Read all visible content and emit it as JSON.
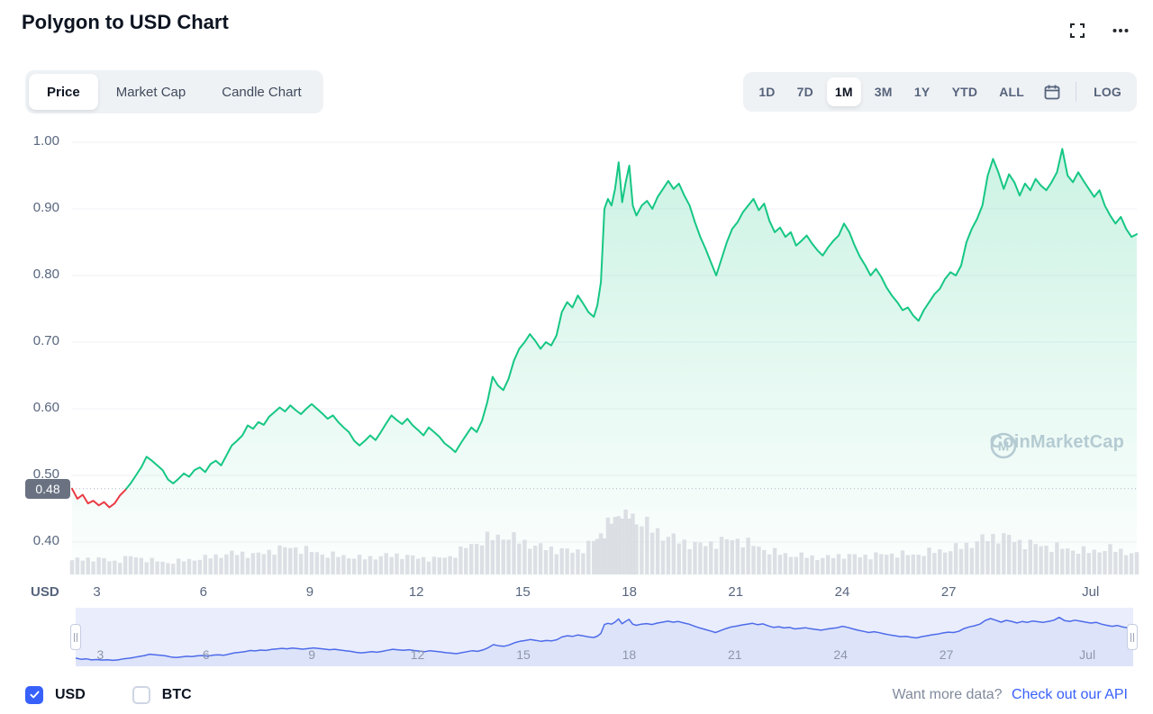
{
  "header": {
    "title": "Polygon to USD Chart"
  },
  "toolbar": {
    "tabs": [
      {
        "label": "Price",
        "active": true
      },
      {
        "label": "Market Cap",
        "active": false
      },
      {
        "label": "Candle Chart",
        "active": false
      }
    ],
    "ranges": [
      {
        "label": "1D",
        "active": false
      },
      {
        "label": "7D",
        "active": false
      },
      {
        "label": "1M",
        "active": true
      },
      {
        "label": "3M",
        "active": false
      },
      {
        "label": "1Y",
        "active": false
      },
      {
        "label": "YTD",
        "active": false
      },
      {
        "label": "ALL",
        "active": false
      }
    ],
    "log_label": "LOG"
  },
  "watermark": {
    "text": "CoinMarketCap"
  },
  "chart_data": {
    "type": "area",
    "title": "Polygon to USD Chart",
    "range_selected": "1M",
    "currency": "USD",
    "yticks": [
      "1.00",
      "0.90",
      "0.80",
      "0.70",
      "0.60",
      "0.50",
      "0.40"
    ],
    "ylim": [
      0.4,
      1.0
    ],
    "xticks": [
      {
        "label": "3",
        "day": 3
      },
      {
        "label": "6",
        "day": 6
      },
      {
        "label": "9",
        "day": 9
      },
      {
        "label": "12",
        "day": 12
      },
      {
        "label": "15",
        "day": 15
      },
      {
        "label": "18",
        "day": 18
      },
      {
        "label": "21",
        "day": 21
      },
      {
        "label": "24",
        "day": 24
      },
      {
        "label": "27",
        "day": 27
      },
      {
        "label": "Jul",
        "day": 31
      }
    ],
    "reference_price": 0.48,
    "reference_label": "0.48",
    "line_color_up": "#16c784",
    "line_color_down": "#ea3943",
    "volume_color": "#d8dbe1",
    "navigator_line_color": "#4e6bea",
    "navigator_bg_color": "#e9edfc",
    "navigator_fill_color": "#dde4f9",
    "points": [
      [
        2.3,
        0.48
      ],
      [
        2.45,
        0.465
      ],
      [
        2.6,
        0.471
      ],
      [
        2.75,
        0.458
      ],
      [
        2.9,
        0.462
      ],
      [
        3.05,
        0.455
      ],
      [
        3.2,
        0.46
      ],
      [
        3.35,
        0.452
      ],
      [
        3.5,
        0.458
      ],
      [
        3.65,
        0.47
      ],
      [
        3.8,
        0.478
      ],
      [
        3.95,
        0.488
      ],
      [
        4.1,
        0.5
      ],
      [
        4.25,
        0.512
      ],
      [
        4.4,
        0.528
      ],
      [
        4.55,
        0.522
      ],
      [
        4.7,
        0.515
      ],
      [
        4.85,
        0.508
      ],
      [
        5.0,
        0.494
      ],
      [
        5.15,
        0.488
      ],
      [
        5.3,
        0.495
      ],
      [
        5.45,
        0.503
      ],
      [
        5.6,
        0.498
      ],
      [
        5.75,
        0.508
      ],
      [
        5.9,
        0.512
      ],
      [
        6.05,
        0.505
      ],
      [
        6.2,
        0.517
      ],
      [
        6.35,
        0.522
      ],
      [
        6.5,
        0.515
      ],
      [
        6.65,
        0.53
      ],
      [
        6.8,
        0.545
      ],
      [
        6.95,
        0.552
      ],
      [
        7.1,
        0.56
      ],
      [
        7.25,
        0.575
      ],
      [
        7.4,
        0.57
      ],
      [
        7.55,
        0.58
      ],
      [
        7.7,
        0.576
      ],
      [
        7.85,
        0.588
      ],
      [
        8.0,
        0.595
      ],
      [
        8.15,
        0.602
      ],
      [
        8.3,
        0.596
      ],
      [
        8.45,
        0.605
      ],
      [
        8.6,
        0.598
      ],
      [
        8.75,
        0.592
      ],
      [
        8.9,
        0.6
      ],
      [
        9.05,
        0.607
      ],
      [
        9.2,
        0.6
      ],
      [
        9.35,
        0.593
      ],
      [
        9.5,
        0.585
      ],
      [
        9.65,
        0.59
      ],
      [
        9.8,
        0.58
      ],
      [
        9.95,
        0.572
      ],
      [
        10.1,
        0.565
      ],
      [
        10.25,
        0.552
      ],
      [
        10.4,
        0.545
      ],
      [
        10.55,
        0.552
      ],
      [
        10.7,
        0.56
      ],
      [
        10.85,
        0.553
      ],
      [
        11.0,
        0.565
      ],
      [
        11.15,
        0.578
      ],
      [
        11.3,
        0.59
      ],
      [
        11.45,
        0.583
      ],
      [
        11.6,
        0.577
      ],
      [
        11.75,
        0.585
      ],
      [
        11.9,
        0.575
      ],
      [
        12.05,
        0.568
      ],
      [
        12.2,
        0.56
      ],
      [
        12.35,
        0.572
      ],
      [
        12.5,
        0.565
      ],
      [
        12.65,
        0.558
      ],
      [
        12.8,
        0.548
      ],
      [
        12.95,
        0.542
      ],
      [
        13.1,
        0.535
      ],
      [
        13.25,
        0.548
      ],
      [
        13.4,
        0.56
      ],
      [
        13.55,
        0.572
      ],
      [
        13.7,
        0.565
      ],
      [
        13.85,
        0.582
      ],
      [
        14.0,
        0.61
      ],
      [
        14.15,
        0.648
      ],
      [
        14.3,
        0.635
      ],
      [
        14.45,
        0.628
      ],
      [
        14.6,
        0.645
      ],
      [
        14.75,
        0.672
      ],
      [
        14.9,
        0.69
      ],
      [
        15.05,
        0.7
      ],
      [
        15.2,
        0.712
      ],
      [
        15.35,
        0.702
      ],
      [
        15.5,
        0.69
      ],
      [
        15.65,
        0.7
      ],
      [
        15.8,
        0.695
      ],
      [
        15.95,
        0.71
      ],
      [
        16.1,
        0.745
      ],
      [
        16.25,
        0.76
      ],
      [
        16.4,
        0.752
      ],
      [
        16.55,
        0.77
      ],
      [
        16.7,
        0.758
      ],
      [
        16.85,
        0.745
      ],
      [
        17.0,
        0.738
      ],
      [
        17.1,
        0.755
      ],
      [
        17.2,
        0.79
      ],
      [
        17.3,
        0.9
      ],
      [
        17.4,
        0.915
      ],
      [
        17.5,
        0.905
      ],
      [
        17.6,
        0.93
      ],
      [
        17.7,
        0.97
      ],
      [
        17.8,
        0.91
      ],
      [
        17.9,
        0.94
      ],
      [
        18.0,
        0.965
      ],
      [
        18.1,
        0.905
      ],
      [
        18.2,
        0.89
      ],
      [
        18.35,
        0.905
      ],
      [
        18.5,
        0.912
      ],
      [
        18.65,
        0.9
      ],
      [
        18.8,
        0.918
      ],
      [
        18.95,
        0.93
      ],
      [
        19.1,
        0.942
      ],
      [
        19.25,
        0.93
      ],
      [
        19.4,
        0.938
      ],
      [
        19.55,
        0.92
      ],
      [
        19.7,
        0.905
      ],
      [
        19.85,
        0.88
      ],
      [
        20.0,
        0.858
      ],
      [
        20.15,
        0.84
      ],
      [
        20.3,
        0.82
      ],
      [
        20.45,
        0.8
      ],
      [
        20.6,
        0.825
      ],
      [
        20.75,
        0.85
      ],
      [
        20.9,
        0.87
      ],
      [
        21.05,
        0.88
      ],
      [
        21.2,
        0.895
      ],
      [
        21.35,
        0.905
      ],
      [
        21.5,
        0.915
      ],
      [
        21.65,
        0.898
      ],
      [
        21.8,
        0.908
      ],
      [
        21.95,
        0.882
      ],
      [
        22.1,
        0.865
      ],
      [
        22.25,
        0.872
      ],
      [
        22.4,
        0.858
      ],
      [
        22.55,
        0.865
      ],
      [
        22.7,
        0.845
      ],
      [
        22.85,
        0.852
      ],
      [
        23.0,
        0.86
      ],
      [
        23.15,
        0.848
      ],
      [
        23.3,
        0.838
      ],
      [
        23.45,
        0.83
      ],
      [
        23.6,
        0.842
      ],
      [
        23.75,
        0.852
      ],
      [
        23.9,
        0.86
      ],
      [
        24.05,
        0.878
      ],
      [
        24.2,
        0.865
      ],
      [
        24.35,
        0.845
      ],
      [
        24.5,
        0.828
      ],
      [
        24.65,
        0.815
      ],
      [
        24.8,
        0.8
      ],
      [
        24.95,
        0.81
      ],
      [
        25.1,
        0.798
      ],
      [
        25.25,
        0.782
      ],
      [
        25.4,
        0.77
      ],
      [
        25.55,
        0.76
      ],
      [
        25.7,
        0.748
      ],
      [
        25.85,
        0.752
      ],
      [
        26.0,
        0.74
      ],
      [
        26.15,
        0.732
      ],
      [
        26.3,
        0.748
      ],
      [
        26.45,
        0.76
      ],
      [
        26.6,
        0.772
      ],
      [
        26.75,
        0.78
      ],
      [
        26.9,
        0.795
      ],
      [
        27.05,
        0.805
      ],
      [
        27.2,
        0.8
      ],
      [
        27.35,
        0.815
      ],
      [
        27.5,
        0.85
      ],
      [
        27.65,
        0.87
      ],
      [
        27.8,
        0.885
      ],
      [
        27.95,
        0.905
      ],
      [
        28.1,
        0.95
      ],
      [
        28.25,
        0.975
      ],
      [
        28.4,
        0.955
      ],
      [
        28.55,
        0.93
      ],
      [
        28.7,
        0.952
      ],
      [
        28.85,
        0.94
      ],
      [
        29.0,
        0.92
      ],
      [
        29.15,
        0.938
      ],
      [
        29.3,
        0.928
      ],
      [
        29.45,
        0.945
      ],
      [
        29.6,
        0.935
      ],
      [
        29.75,
        0.928
      ],
      [
        29.9,
        0.94
      ],
      [
        30.05,
        0.955
      ],
      [
        30.2,
        0.99
      ],
      [
        30.35,
        0.95
      ],
      [
        30.5,
        0.94
      ],
      [
        30.65,
        0.955
      ],
      [
        30.8,
        0.942
      ],
      [
        30.95,
        0.93
      ],
      [
        31.1,
        0.918
      ],
      [
        31.25,
        0.928
      ],
      [
        31.4,
        0.905
      ],
      [
        31.55,
        0.89
      ],
      [
        31.7,
        0.878
      ],
      [
        31.85,
        0.888
      ],
      [
        32.0,
        0.87
      ],
      [
        32.15,
        0.858
      ],
      [
        32.3,
        0.862
      ]
    ],
    "volume_points": [
      [
        2.3,
        0.22
      ],
      [
        3,
        0.25
      ],
      [
        3.5,
        0.2
      ],
      [
        4,
        0.28
      ],
      [
        4.5,
        0.22
      ],
      [
        5,
        0.18
      ],
      [
        5.5,
        0.22
      ],
      [
        6,
        0.25
      ],
      [
        6.5,
        0.3
      ],
      [
        7,
        0.33
      ],
      [
        7.5,
        0.3
      ],
      [
        8,
        0.38
      ],
      [
        8.5,
        0.42
      ],
      [
        9,
        0.36
      ],
      [
        9.5,
        0.3
      ],
      [
        10,
        0.28
      ],
      [
        10.5,
        0.25
      ],
      [
        11,
        0.28
      ],
      [
        11.5,
        0.3
      ],
      [
        12,
        0.26
      ],
      [
        12.5,
        0.24
      ],
      [
        13,
        0.28
      ],
      [
        13.5,
        0.45
      ],
      [
        14,
        0.55
      ],
      [
        14.5,
        0.6
      ],
      [
        15,
        0.5
      ],
      [
        15.5,
        0.42
      ],
      [
        16,
        0.38
      ],
      [
        16.5,
        0.35
      ],
      [
        17,
        0.5
      ],
      [
        17.5,
        0.8
      ],
      [
        17.8,
        1.0
      ],
      [
        18,
        0.92
      ],
      [
        18.5,
        0.75
      ],
      [
        19,
        0.6
      ],
      [
        19.5,
        0.5
      ],
      [
        20,
        0.45
      ],
      [
        20.5,
        0.5
      ],
      [
        21,
        0.55
      ],
      [
        21.5,
        0.45
      ],
      [
        22,
        0.35
      ],
      [
        22.5,
        0.3
      ],
      [
        23,
        0.28
      ],
      [
        23.5,
        0.25
      ],
      [
        24,
        0.3
      ],
      [
        24.5,
        0.28
      ],
      [
        25,
        0.3
      ],
      [
        25.5,
        0.32
      ],
      [
        26,
        0.3
      ],
      [
        26.5,
        0.35
      ],
      [
        27,
        0.38
      ],
      [
        27.5,
        0.45
      ],
      [
        28,
        0.55
      ],
      [
        28.5,
        0.6
      ],
      [
        29,
        0.5
      ],
      [
        29.5,
        0.45
      ],
      [
        30,
        0.42
      ],
      [
        30.5,
        0.38
      ],
      [
        31,
        0.35
      ],
      [
        31.5,
        0.4
      ],
      [
        32,
        0.35
      ],
      [
        32.3,
        0.3
      ]
    ]
  },
  "footer": {
    "usd_label": "USD",
    "btc_label": "BTC",
    "usd_checked": true,
    "btc_checked": false,
    "promo_text": "Want more data?",
    "promo_link": "Check out our API"
  }
}
